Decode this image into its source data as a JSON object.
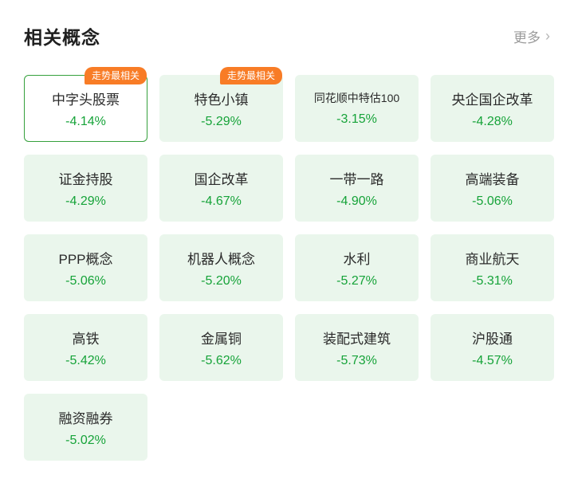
{
  "header": {
    "title": "相关概念",
    "more_label": "更多",
    "more_chevron": "›"
  },
  "badge_label": "走势最相关",
  "colors": {
    "card_bg": "#eaf6ec",
    "pct_green": "#16a339",
    "badge_orange": "#f87c26",
    "selected_border": "#35a03c"
  },
  "cards": [
    {
      "name": "中字头股票",
      "change": "-4.14%",
      "selected": true,
      "badge": true
    },
    {
      "name": "特色小镇",
      "change": "-5.29%",
      "selected": false,
      "badge": true
    },
    {
      "name": "同花顺中特估100",
      "change": "-3.15%",
      "selected": false,
      "badge": false
    },
    {
      "name": "央企国企改革",
      "change": "-4.28%",
      "selected": false,
      "badge": false
    },
    {
      "name": "证金持股",
      "change": "-4.29%",
      "selected": false,
      "badge": false
    },
    {
      "name": "国企改革",
      "change": "-4.67%",
      "selected": false,
      "badge": false
    },
    {
      "name": "一带一路",
      "change": "-4.90%",
      "selected": false,
      "badge": false
    },
    {
      "name": "高端装备",
      "change": "-5.06%",
      "selected": false,
      "badge": false
    },
    {
      "name": "PPP概念",
      "change": "-5.06%",
      "selected": false,
      "badge": false
    },
    {
      "name": "机器人概念",
      "change": "-5.20%",
      "selected": false,
      "badge": false
    },
    {
      "name": "水利",
      "change": "-5.27%",
      "selected": false,
      "badge": false
    },
    {
      "name": "商业航天",
      "change": "-5.31%",
      "selected": false,
      "badge": false
    },
    {
      "name": "高铁",
      "change": "-5.42%",
      "selected": false,
      "badge": false
    },
    {
      "name": "金属铜",
      "change": "-5.62%",
      "selected": false,
      "badge": false
    },
    {
      "name": "装配式建筑",
      "change": "-5.73%",
      "selected": false,
      "badge": false
    },
    {
      "name": "沪股通",
      "change": "-4.57%",
      "selected": false,
      "badge": false
    },
    {
      "name": "融资融券",
      "change": "-5.02%",
      "selected": false,
      "badge": false
    }
  ]
}
